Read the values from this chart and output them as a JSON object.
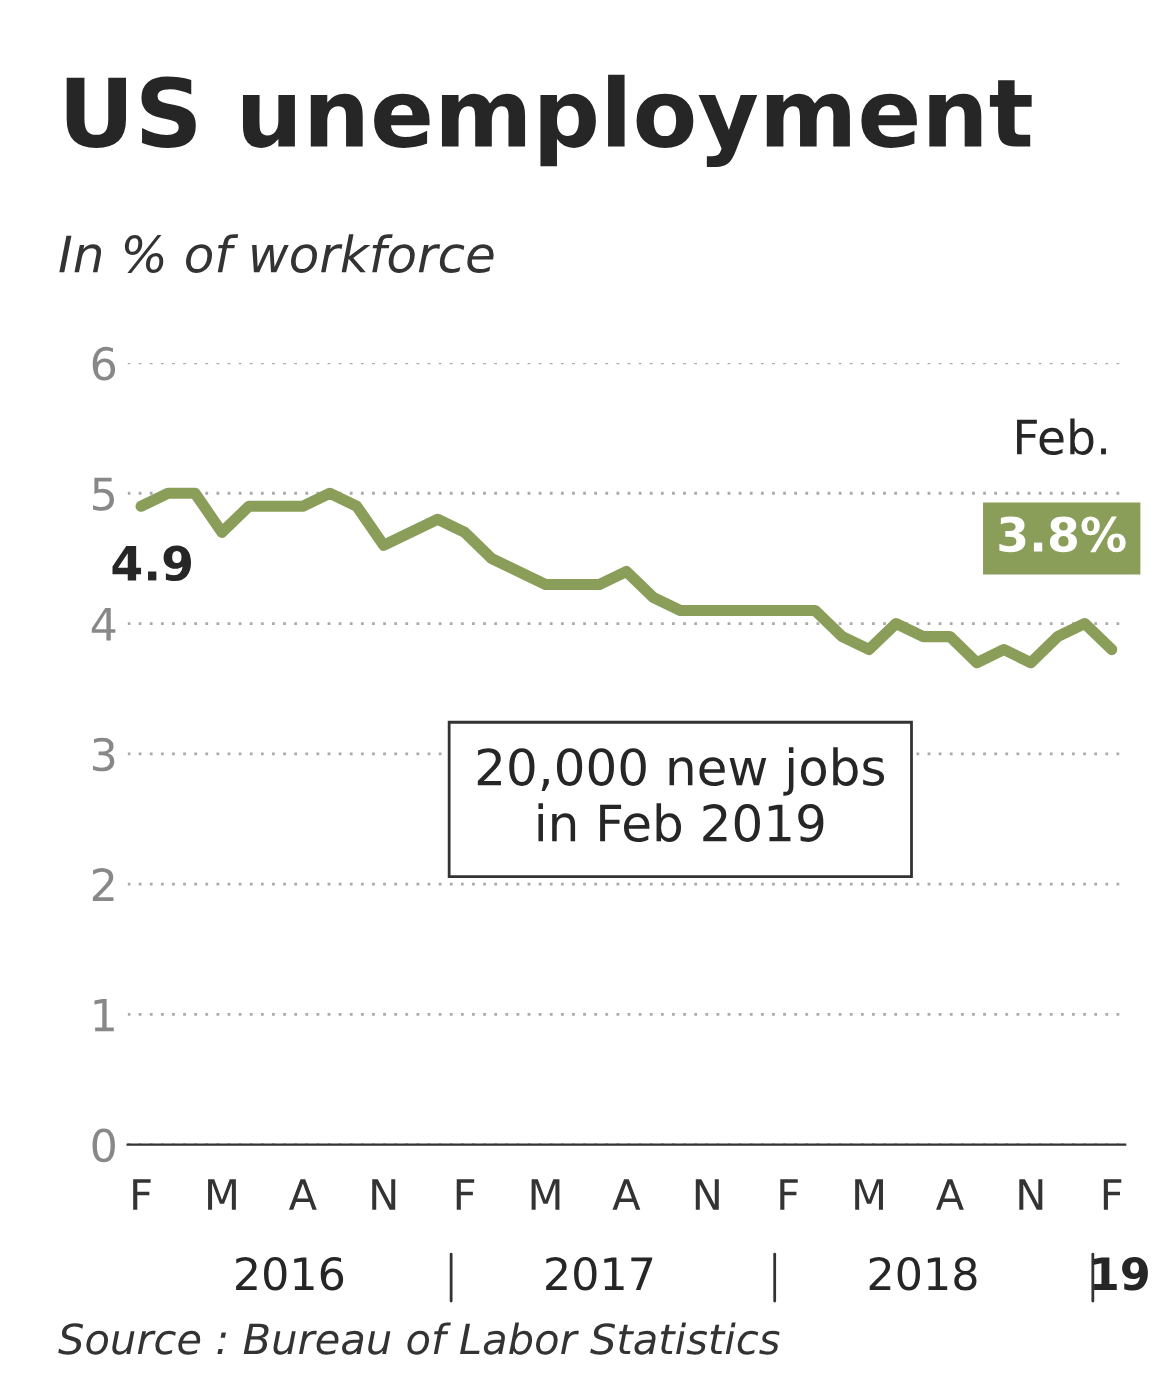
{
  "chart_data": {
    "type": "line",
    "title": "US unemployment",
    "subtitle": "In % of workforce",
    "categories": [
      "F",
      null,
      null,
      "M",
      null,
      null,
      "A",
      null,
      null,
      "N",
      null,
      null,
      "F",
      null,
      null,
      "M",
      null,
      null,
      "A",
      null,
      null,
      "N",
      null,
      null,
      "F",
      null,
      null,
      "M",
      null,
      null,
      "A",
      null,
      null,
      "N",
      null,
      null,
      "F"
    ],
    "series": [
      {
        "color": "#8a9e5a",
        "values": [
          4.9,
          5.0,
          5.0,
          4.7,
          4.9,
          4.9,
          4.9,
          5.0,
          4.9,
          4.6,
          4.7,
          4.8,
          4.7,
          4.5,
          4.4,
          4.3,
          4.3,
          4.3,
          4.4,
          4.2,
          4.1,
          4.1,
          4.1,
          4.1,
          4.1,
          4.1,
          3.9,
          3.8,
          4.0,
          3.9,
          3.9,
          3.7,
          3.8,
          3.7,
          3.9,
          4.0,
          3.8
        ],
        "value_labels": [
          "4.9",
          null,
          null,
          null,
          null,
          null,
          null,
          null,
          null,
          null,
          null,
          null,
          null,
          null,
          null,
          null,
          null,
          null,
          null,
          null,
          null,
          null,
          null,
          null,
          null,
          null,
          null,
          null,
          null,
          null,
          null,
          null,
          null,
          null,
          null,
          null,
          "3.8%"
        ]
      }
    ],
    "ylim": [
      0,
      6
    ],
    "yticks": [
      0,
      1,
      2,
      3,
      4,
      5,
      6
    ],
    "grid": "y",
    "legend": false,
    "line_style": "solid",
    "annotations": [
      "Feb.",
      "20,000 new jobs\nin Feb 2019",
      "2016",
      "2017",
      "2018",
      "19",
      "Source : Bureau of Labor Statistics"
    ]
  }
}
